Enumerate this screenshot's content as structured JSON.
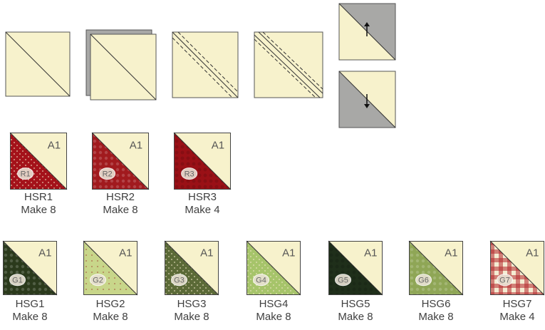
{
  "colors": {
    "cream": "#f7f2cc",
    "leaf": "#d8d59a",
    "gray": "#a8a8a6",
    "outline": "#555555"
  },
  "steps": [
    {
      "id": "step-1",
      "label": "",
      "type": "plain"
    },
    {
      "id": "step-2",
      "label": "",
      "type": "stacked"
    },
    {
      "id": "step-3",
      "label": "",
      "type": "sewn-lines"
    },
    {
      "id": "step-4",
      "label": "",
      "type": "cut-lines"
    },
    {
      "id": "step-5a",
      "label": "",
      "type": "pressed-up"
    },
    {
      "id": "step-5b",
      "label": "",
      "type": "pressed-down"
    }
  ],
  "units_red": [
    {
      "code": "HSR1",
      "make": "Make 8",
      "fabric_label": "R1",
      "print_label": "A1",
      "fabric_color": "#a4121a",
      "fabric_pattern": "dots"
    },
    {
      "code": "HSR2",
      "make": "Make 8",
      "fabric_label": "R2",
      "print_label": "A1",
      "fabric_color": "#a11a1e",
      "fabric_pattern": "floral"
    },
    {
      "code": "HSR3",
      "make": "Make 4",
      "fabric_label": "R3",
      "print_label": "A1",
      "fabric_color": "#9a1016",
      "fabric_pattern": "tonal"
    }
  ],
  "units_green": [
    {
      "code": "HSG1",
      "make": "Make 8",
      "fabric_label": "G1",
      "print_label": "A1",
      "fabric_color": "#2b3a1c",
      "fabric_pattern": "floral"
    },
    {
      "code": "HSG2",
      "make": "Make 8",
      "fabric_label": "G2",
      "print_label": "A1",
      "fabric_color": "#c8d68a",
      "fabric_pattern": "berries"
    },
    {
      "code": "HSG3",
      "make": "Make 8",
      "fabric_label": "G3",
      "print_label": "A1",
      "fabric_color": "#5b6a37",
      "fabric_pattern": "dots"
    },
    {
      "code": "HSG4",
      "make": "Make 8",
      "fabric_label": "G4",
      "print_label": "A1",
      "fabric_color": "#a6c46a",
      "fabric_pattern": "dots"
    },
    {
      "code": "HSG5",
      "make": "Make 8",
      "fabric_label": "G5",
      "print_label": "A1",
      "fabric_color": "#1f2f1a",
      "fabric_pattern": "tonal"
    },
    {
      "code": "HSG6",
      "make": "Make 8",
      "fabric_label": "G6",
      "print_label": "A1",
      "fabric_color": "#8fa656",
      "fabric_pattern": "floral"
    },
    {
      "code": "HSG7",
      "make": "Make 4",
      "fabric_label": "G7",
      "print_label": "A1",
      "fabric_color": "#b4282c",
      "fabric_pattern": "gingham"
    }
  ]
}
